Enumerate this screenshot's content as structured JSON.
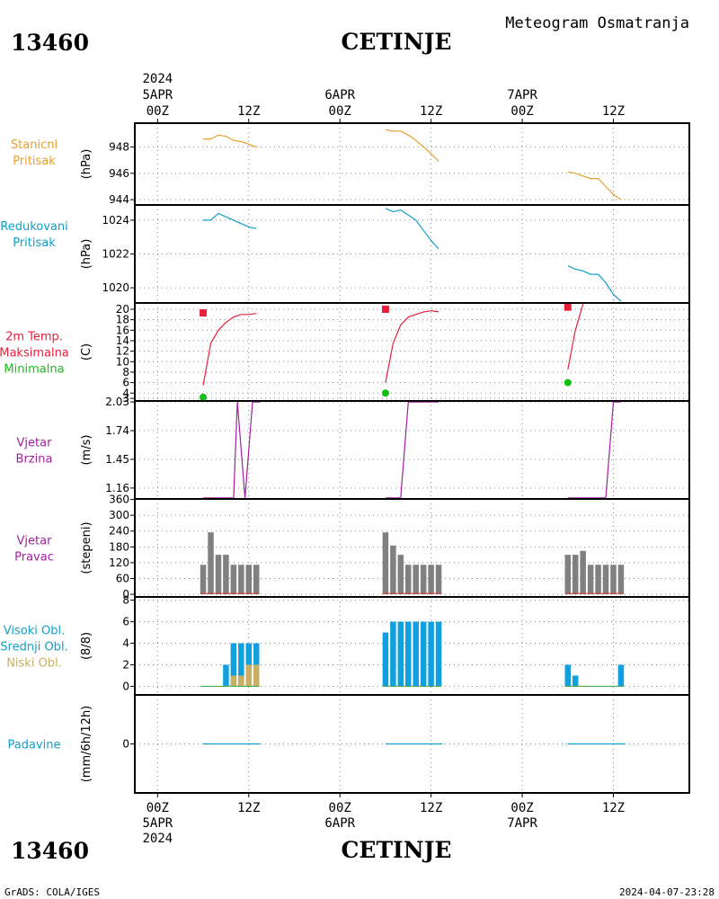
{
  "header": {
    "title": "Meteogram Osmatranja",
    "station_id": "13460",
    "station_name": "CETINJE"
  },
  "footer": {
    "credit": "GrADS: COLA/IGES",
    "timestamp": "2024-04-07-23:28"
  },
  "time_axis": {
    "top_year": "2024",
    "bottom_year": "2024",
    "date_labels": [
      "5APR",
      "6APR",
      "7APR"
    ],
    "hour_labels": [
      "00Z",
      "12Z",
      "00Z",
      "12Z",
      "00Z",
      "12Z"
    ],
    "hour_ticks": [
      0,
      12,
      24,
      36,
      48,
      60
    ],
    "x_range_hours": [
      -3,
      70
    ]
  },
  "colors": {
    "orange": "#e8a030",
    "cyan": "#10a0c8",
    "red": "#e8203c",
    "green": "#10c010",
    "purple": "#a020a0",
    "gray": "#808080",
    "blue_bar": "#10a0e0",
    "tan_bar": "#c8b060"
  },
  "chart_data": [
    {
      "type": "line",
      "panel": "station_pressure",
      "labels": [
        {
          "text": "Stanicni",
          "color": "orange"
        },
        {
          "text": "Pritisak",
          "color": "orange"
        }
      ],
      "unit": "(hPa)",
      "ylim": [
        943.6,
        949.8
      ],
      "yticks": [
        944,
        946,
        948
      ],
      "series": [
        {
          "color": "orange",
          "x": [
            6,
            7,
            8,
            9,
            10,
            11,
            12,
            13
          ],
          "y": [
            948.6,
            948.6,
            948.9,
            948.8,
            948.5,
            948.4,
            948.2,
            948.0
          ]
        },
        {
          "color": "orange",
          "x": [
            30,
            31,
            32,
            33,
            34,
            35,
            36,
            37
          ],
          "y": [
            949.3,
            949.2,
            949.2,
            948.9,
            948.5,
            948.0,
            947.5,
            946.9
          ]
        },
        {
          "color": "orange",
          "x": [
            54,
            55,
            56,
            57,
            58,
            59,
            60,
            61
          ],
          "y": [
            946.1,
            946.0,
            945.8,
            945.6,
            945.6,
            945.0,
            944.4,
            944.0
          ]
        }
      ]
    },
    {
      "type": "line",
      "panel": "reduced_pressure",
      "labels": [
        {
          "text": "Redukovani",
          "color": "cyan"
        },
        {
          "text": "Pritisak",
          "color": "cyan"
        }
      ],
      "unit": "(hPa)",
      "ylim": [
        1019.1,
        1024.9
      ],
      "yticks": [
        1020,
        1022,
        1024
      ],
      "series": [
        {
          "color": "cyan",
          "x": [
            6,
            7,
            8,
            9,
            10,
            11,
            12,
            13
          ],
          "y": [
            1024.0,
            1024.0,
            1024.4,
            1024.2,
            1024.0,
            1023.8,
            1023.6,
            1023.5
          ]
        },
        {
          "color": "cyan",
          "x": [
            30,
            31,
            32,
            33,
            34,
            35,
            36,
            37
          ],
          "y": [
            1024.7,
            1024.5,
            1024.6,
            1024.3,
            1024.0,
            1023.4,
            1022.8,
            1022.3
          ]
        },
        {
          "color": "cyan",
          "x": [
            54,
            55,
            56,
            57,
            58,
            59,
            60,
            61
          ],
          "y": [
            1021.3,
            1021.1,
            1021.0,
            1020.8,
            1020.8,
            1020.3,
            1019.6,
            1019.2
          ]
        }
      ]
    },
    {
      "type": "line",
      "panel": "temperature",
      "labels": [
        {
          "text": "2m Temp.",
          "color": "red"
        },
        {
          "text": "Maksimalna",
          "color": "red"
        },
        {
          "text": "Minimalna",
          "color": "green"
        }
      ],
      "unit": "(C)",
      "ylim": [
        2.5,
        21.2
      ],
      "yticks": [
        3,
        4,
        6,
        8,
        10,
        12,
        14,
        16,
        18,
        20
      ],
      "series": [
        {
          "color": "red",
          "x": [
            6,
            7,
            8,
            9,
            10,
            11,
            12,
            13
          ],
          "y": [
            5.5,
            13.5,
            16.0,
            17.5,
            18.5,
            19.0,
            19.0,
            19.2
          ]
        },
        {
          "color": "red",
          "x": [
            30,
            31,
            32,
            33,
            34,
            35,
            36,
            37
          ],
          "y": [
            6.0,
            13.5,
            17.0,
            18.5,
            19.0,
            19.5,
            19.7,
            19.5
          ]
        },
        {
          "color": "red",
          "x": [
            54,
            55,
            56
          ],
          "y": [
            8.5,
            16.0,
            21.0
          ]
        }
      ],
      "maximum": {
        "x": [
          6,
          30,
          54
        ],
        "y": [
          19.3,
          20.0,
          20.4
        ]
      },
      "minimum": {
        "x": [
          6,
          30,
          54
        ],
        "y": [
          3.2,
          4.0,
          6.0
        ]
      }
    },
    {
      "type": "line",
      "panel": "wind_speed",
      "labels": [
        {
          "text": "Vjetar",
          "color": "purple"
        },
        {
          "text": "Brzina",
          "color": "purple"
        }
      ],
      "unit": "(m/s)",
      "ylim": [
        1.05,
        2.04
      ],
      "yticks": [
        1.16,
        1.45,
        1.74,
        2.03
      ],
      "series": [
        {
          "color": "purple",
          "x": [
            6,
            10,
            10.5,
            11.5,
            12.5,
            13.5
          ],
          "y": [
            1.06,
            1.06,
            2.03,
            1.06,
            2.03,
            2.03
          ]
        },
        {
          "color": "purple",
          "x": [
            30,
            32,
            33,
            37
          ],
          "y": [
            1.06,
            1.06,
            2.03,
            2.03
          ]
        },
        {
          "color": "purple",
          "x": [
            54,
            59,
            60,
            61
          ],
          "y": [
            1.06,
            1.06,
            2.03,
            2.03
          ]
        }
      ]
    },
    {
      "type": "bar",
      "panel": "wind_direction",
      "labels": [
        {
          "text": "Vjetar",
          "color": "purple"
        },
        {
          "text": "Pravac",
          "color": "purple"
        }
      ],
      "unit": "(stepeni)",
      "ylim": [
        -10,
        362
      ],
      "yticks": [
        0,
        60,
        120,
        180,
        240,
        300,
        360
      ],
      "tick_labels": [
        "0",
        "60",
        "120",
        "180",
        "240",
        "300",
        "360"
      ],
      "x": [
        6,
        7,
        8,
        9,
        10,
        11,
        12,
        13,
        30,
        31,
        32,
        33,
        34,
        35,
        36,
        37,
        54,
        55,
        56,
        57,
        58,
        59,
        60,
        61
      ],
      "values": [
        112,
        235,
        150,
        150,
        112,
        112,
        112,
        112,
        235,
        185,
        150,
        112,
        112,
        112,
        112,
        112,
        150,
        150,
        165,
        112,
        112,
        112,
        112,
        112
      ],
      "color": "gray"
    },
    {
      "type": "bar",
      "panel": "clouds",
      "labels": [
        {
          "text": "Visoki Obl.",
          "color": "cyan"
        },
        {
          "text": "Srednji Obl.",
          "color": "cyan"
        },
        {
          "text": "Niski Obl.",
          "color": "tan"
        }
      ],
      "unit": "(8/8)",
      "ylim": [
        -0.8,
        8.3
      ],
      "yticks": [
        0,
        2,
        4,
        6,
        8
      ],
      "x": [
        6,
        7,
        8,
        9,
        10,
        11,
        12,
        13,
        30,
        31,
        32,
        33,
        34,
        35,
        36,
        37,
        54,
        55,
        56,
        57,
        58,
        59,
        60,
        61
      ],
      "series": [
        {
          "name": "Visoki Obl.",
          "color": "blue_bar",
          "values": [
            0,
            0,
            0,
            2,
            4,
            4,
            4,
            4,
            5,
            6,
            6,
            6,
            6,
            6,
            6,
            6,
            2,
            1,
            0,
            0,
            0,
            0,
            0,
            2
          ]
        },
        {
          "name": "Niski Obl.",
          "color": "tan_bar",
          "values": [
            0,
            0,
            0,
            0,
            1,
            1,
            2,
            2,
            0,
            0,
            0,
            0,
            0,
            0,
            0,
            0,
            0,
            0,
            0,
            0,
            0,
            0,
            0,
            0
          ]
        }
      ]
    },
    {
      "type": "line",
      "panel": "precipitation",
      "labels": [
        {
          "text": "Padavine",
          "color": "cyan"
        }
      ],
      "unit": "(mm/6h/12h)",
      "ylim": [
        -1,
        1
      ],
      "yticks": [
        0
      ],
      "series": [
        {
          "color": "cyan",
          "x": [
            6,
            13.5
          ],
          "y": [
            0,
            0
          ]
        },
        {
          "color": "cyan",
          "x": [
            30,
            37.5
          ],
          "y": [
            0,
            0
          ]
        },
        {
          "color": "cyan",
          "x": [
            54,
            61.5
          ],
          "y": [
            0,
            0
          ]
        }
      ]
    }
  ]
}
